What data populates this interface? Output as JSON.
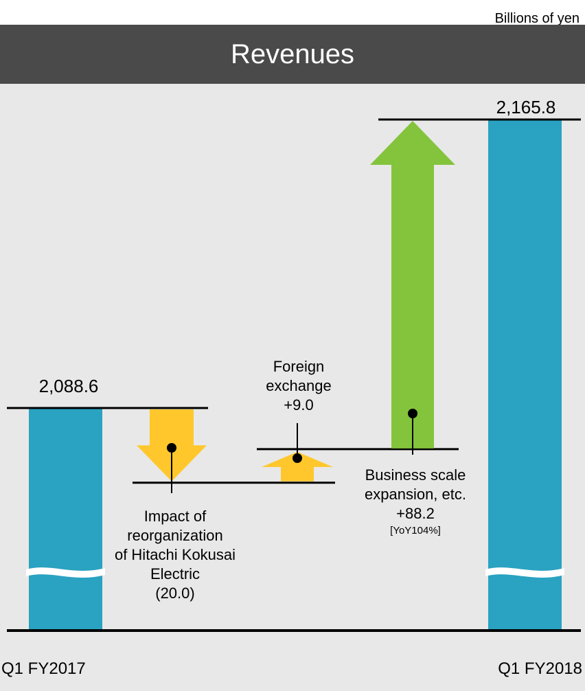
{
  "header": {
    "units": "Billions of yen",
    "title": "Revenues"
  },
  "colors": {
    "title_bg": "#4a4a4a",
    "plot_bg": "#e8e8e8",
    "bar": "#2aa2c1",
    "decrease_arrow": "#ffc72c",
    "small_increase_arrow": "#ffc72c",
    "increase_arrow": "#84c43c"
  },
  "chart_data": {
    "type": "bar",
    "subtype": "waterfall",
    "title": "Revenues",
    "units": "Billions of yen",
    "categories": [
      "Q1 FY2017",
      "Q1 FY2018"
    ],
    "start": {
      "label": "Q1 FY2017",
      "value": 2088.6,
      "value_label": "2,088.6"
    },
    "end": {
      "label": "Q1 FY2018",
      "value": 2165.8,
      "value_label": "2,165.8"
    },
    "steps": [
      {
        "label_lines": [
          "Impact of",
          "reorganization",
          "of Hitachi Kokusai",
          "Electric"
        ],
        "value": -20.0,
        "value_label": "(20.0)"
      },
      {
        "label_lines": [
          "Foreign",
          "exchange"
        ],
        "value": 9.0,
        "value_label": "+9.0"
      },
      {
        "label_lines": [
          "Business scale",
          "expansion, etc."
        ],
        "value": 88.2,
        "value_label": "+88.2",
        "note": "[YoY104%]"
      }
    ],
    "broken_axis": true,
    "grid": false,
    "legend": "none"
  }
}
